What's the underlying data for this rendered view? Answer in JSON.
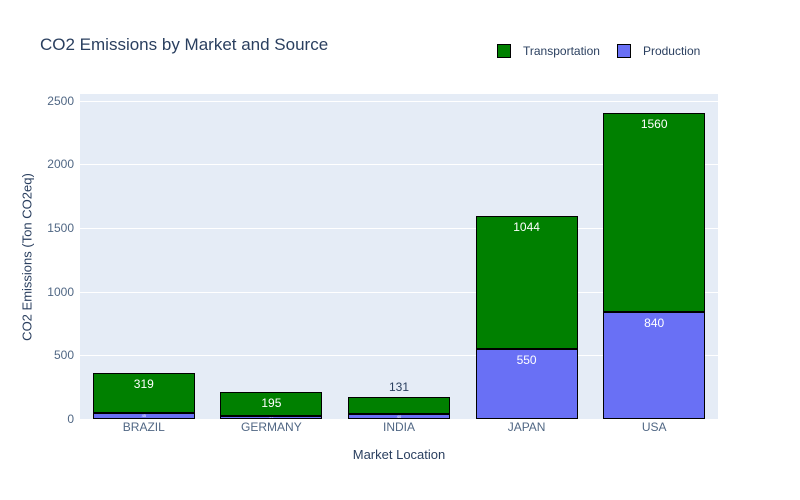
{
  "title": "CO2 Emissions by Market and Source",
  "legend": {
    "items": [
      {
        "label": "Transportation",
        "color": "#008000"
      },
      {
        "label": "Production",
        "color": "#6970F5"
      }
    ]
  },
  "axes": {
    "x_title": "Market Location",
    "y_title": "CO2 Emissions (Ton CO2eq)",
    "y_ticks": [
      0,
      500,
      1000,
      1500,
      2000,
      2500
    ],
    "x_ticks": [
      "BRAZIL",
      "GERMANY",
      "INDIA",
      "JAPAN",
      "USA"
    ]
  },
  "chart_data": {
    "type": "bar",
    "mode": "stacked",
    "title": "CO2 Emissions by Market and Source",
    "categories": [
      "BRAZIL",
      "GERMANY",
      "INDIA",
      "JAPAN",
      "USA"
    ],
    "series": [
      {
        "name": "Production",
        "color": "#6970F5",
        "values": [
          45,
          20,
          40,
          550,
          840
        ],
        "labels_legible": [
          false,
          false,
          false,
          true,
          true
        ]
      },
      {
        "name": "Transportation",
        "color": "#008000",
        "values": [
          319,
          195,
          131,
          1044,
          1560
        ],
        "labels_legible": [
          true,
          true,
          true,
          true,
          true
        ]
      }
    ],
    "xlabel": "Market Location",
    "ylabel": "CO2 Emissions (Ton CO2eq)",
    "ylim": [
      0,
      2500
    ],
    "grid": true,
    "legend_position": "top-right"
  },
  "colors": {
    "plot_background": "#E5ECF6",
    "gridline": "#FFFFFF",
    "bar_border": "#000000",
    "title_text": "#2A3F5F",
    "axis_title_text": "#2A3F5F",
    "tick_text": "#506784",
    "inside_label_text": "#FFFFFF",
    "outside_label_text": "#2A3F5F"
  }
}
